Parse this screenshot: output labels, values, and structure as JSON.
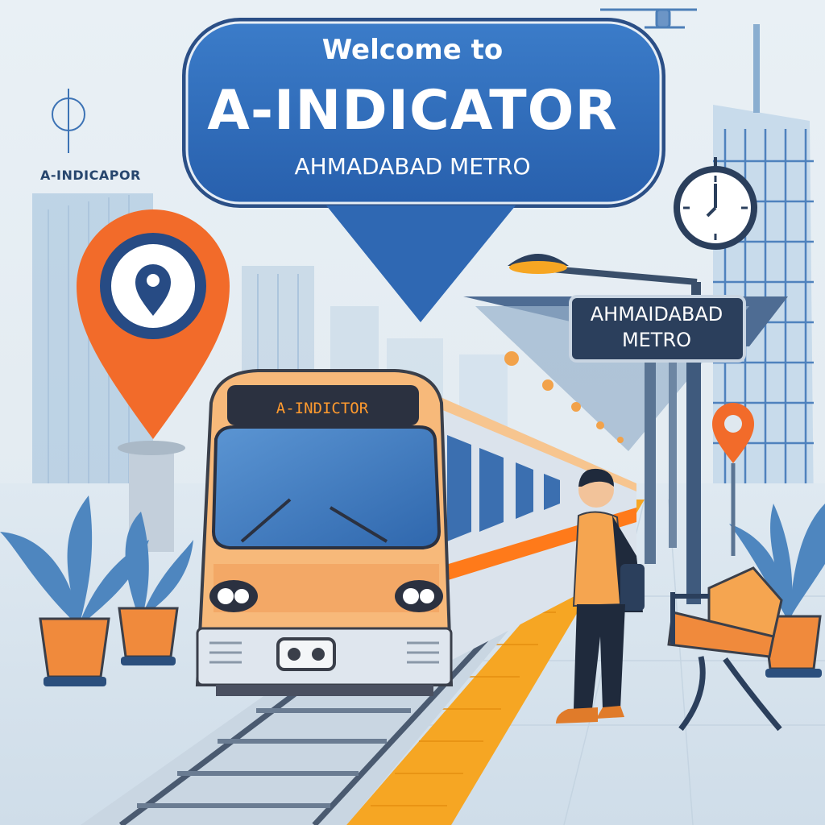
{
  "banner": {
    "welcome": "Welcome to",
    "title": "A-INDICATOR",
    "subtitle": "AHMADABAD METRO"
  },
  "background_sign": "A-INDICAPOR",
  "train": {
    "display": "A-INDICTOR"
  },
  "station_sign": {
    "line1": "AHMAIDABAD",
    "line2": "METRO"
  },
  "icons": [
    "location-pin-icon",
    "clock-icon",
    "small-location-pin-icon",
    "drone-icon",
    "target-icon"
  ],
  "colors": {
    "sky": "#e6eef4",
    "banner": "#2e6bb8",
    "pin": "#f26b2a",
    "train_body": "#f7b97a",
    "stripe": "#ff7a1a",
    "tactile": "#f6a623",
    "sign": "#2b3f5c"
  }
}
